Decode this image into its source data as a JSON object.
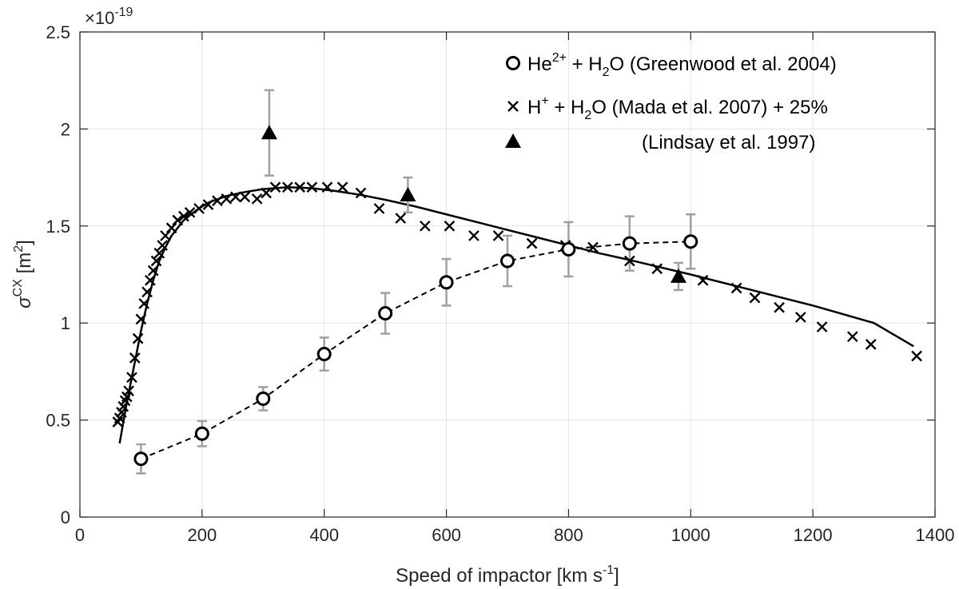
{
  "chart_data": {
    "type": "scatter",
    "title": "",
    "xlabel": {
      "main": "Speed of impactor [km s",
      "sup": "-1",
      "tail": "]"
    },
    "ylabel": {
      "sigma": "σ",
      "sup": "CX",
      "main": " [m",
      "sup2": "2",
      "tail": "]"
    },
    "y_exponent": {
      "base": "×10",
      "exp": "-19"
    },
    "xlim": [
      0,
      1400
    ],
    "ylim": [
      0,
      2.5
    ],
    "x_ticks": [
      0,
      200,
      400,
      600,
      800,
      1000,
      1200,
      1400
    ],
    "x_tick_labels": [
      "0",
      "200",
      "400",
      "600",
      "800",
      "1000",
      "1200",
      "1400"
    ],
    "y_ticks": [
      0,
      0.5,
      1,
      1.5,
      2,
      2.5
    ],
    "y_tick_labels": [
      "0",
      "0.5",
      "1",
      "1.5",
      "2",
      "2.5"
    ],
    "grid": true,
    "legend_position": "top-right",
    "legend": [
      {
        "marker": "circle",
        "parts": [
          {
            "t": "He"
          },
          {
            "t": "2+",
            "s": "sup"
          },
          {
            "t": " + H"
          },
          {
            "t": "2",
            "s": "sub"
          },
          {
            "t": "O (Greenwood et al. 2004)"
          }
        ]
      },
      {
        "marker": "cross",
        "parts": [
          {
            "t": "H"
          },
          {
            "t": "+",
            "s": "sup"
          },
          {
            "t": " + H"
          },
          {
            "t": "2",
            "s": "sub"
          },
          {
            "t": "O (Mada et al. 2007) + 25%"
          }
        ]
      },
      {
        "marker": "triangle",
        "parts": [
          {
            "t": "(Lindsay et al. 1997)"
          }
        ]
      }
    ],
    "series": [
      {
        "name": "He2+ + H2O (Greenwood et al. 2004)",
        "marker": "circle",
        "line": "dashed",
        "x": [
          100,
          200,
          300,
          400,
          500,
          600,
          700,
          800,
          900,
          1000
        ],
        "y": [
          0.3,
          0.43,
          0.61,
          0.84,
          1.05,
          1.21,
          1.32,
          1.38,
          1.41,
          1.42
        ],
        "err": [
          0.075,
          0.065,
          0.06,
          0.085,
          0.105,
          0.12,
          0.13,
          0.14,
          0.14,
          0.14
        ]
      },
      {
        "name": "H+ + H2O (Mada et al. 2007) + 25%",
        "marker": "cross",
        "x": [
          62,
          65,
          68,
          71,
          74,
          77,
          80,
          85,
          90,
          95,
          100,
          105,
          110,
          115,
          120,
          125,
          130,
          135,
          140,
          150,
          160,
          170,
          180,
          195,
          210,
          225,
          240,
          255,
          270,
          290,
          305,
          320,
          340,
          360,
          380,
          405,
          430,
          460,
          490,
          525,
          565,
          605,
          645,
          685,
          740,
          795,
          840,
          900,
          945,
          1020,
          1075,
          1105,
          1145,
          1180,
          1215,
          1265,
          1295,
          1370
        ],
        "y": [
          0.49,
          0.51,
          0.54,
          0.57,
          0.6,
          0.62,
          0.65,
          0.72,
          0.82,
          0.92,
          1.02,
          1.1,
          1.16,
          1.22,
          1.27,
          1.32,
          1.36,
          1.4,
          1.45,
          1.49,
          1.53,
          1.55,
          1.57,
          1.59,
          1.61,
          1.63,
          1.64,
          1.65,
          1.65,
          1.64,
          1.67,
          1.7,
          1.7,
          1.7,
          1.7,
          1.7,
          1.7,
          1.67,
          1.59,
          1.54,
          1.5,
          1.5,
          1.45,
          1.45,
          1.41,
          1.4,
          1.39,
          1.32,
          1.28,
          1.22,
          1.18,
          1.13,
          1.08,
          1.03,
          0.98,
          0.93,
          0.89,
          0.83
        ]
      },
      {
        "name": "Lindsay et al. 1997",
        "marker": "triangle",
        "x": [
          310,
          537,
          980
        ],
        "y": [
          1.98,
          1.66,
          1.24
        ],
        "err": [
          0.22,
          0.09,
          0.07
        ]
      },
      {
        "name": "fit curve",
        "marker": "none",
        "line": "solid",
        "x": [
          65,
          70,
          75,
          80,
          90,
          100,
          110,
          120,
          130,
          140,
          150,
          170,
          190,
          210,
          240,
          270,
          300,
          340,
          380,
          420,
          460,
          500,
          550,
          600,
          650,
          700,
          750,
          800,
          850,
          900,
          1000,
          1100,
          1200,
          1300,
          1365
        ],
        "y": [
          0.38,
          0.47,
          0.56,
          0.64,
          0.8,
          0.96,
          1.1,
          1.22,
          1.32,
          1.39,
          1.45,
          1.53,
          1.58,
          1.62,
          1.655,
          1.675,
          1.69,
          1.7,
          1.695,
          1.68,
          1.66,
          1.635,
          1.6,
          1.56,
          1.52,
          1.48,
          1.44,
          1.4,
          1.36,
          1.325,
          1.25,
          1.17,
          1.09,
          1.0,
          0.88
        ]
      }
    ]
  }
}
